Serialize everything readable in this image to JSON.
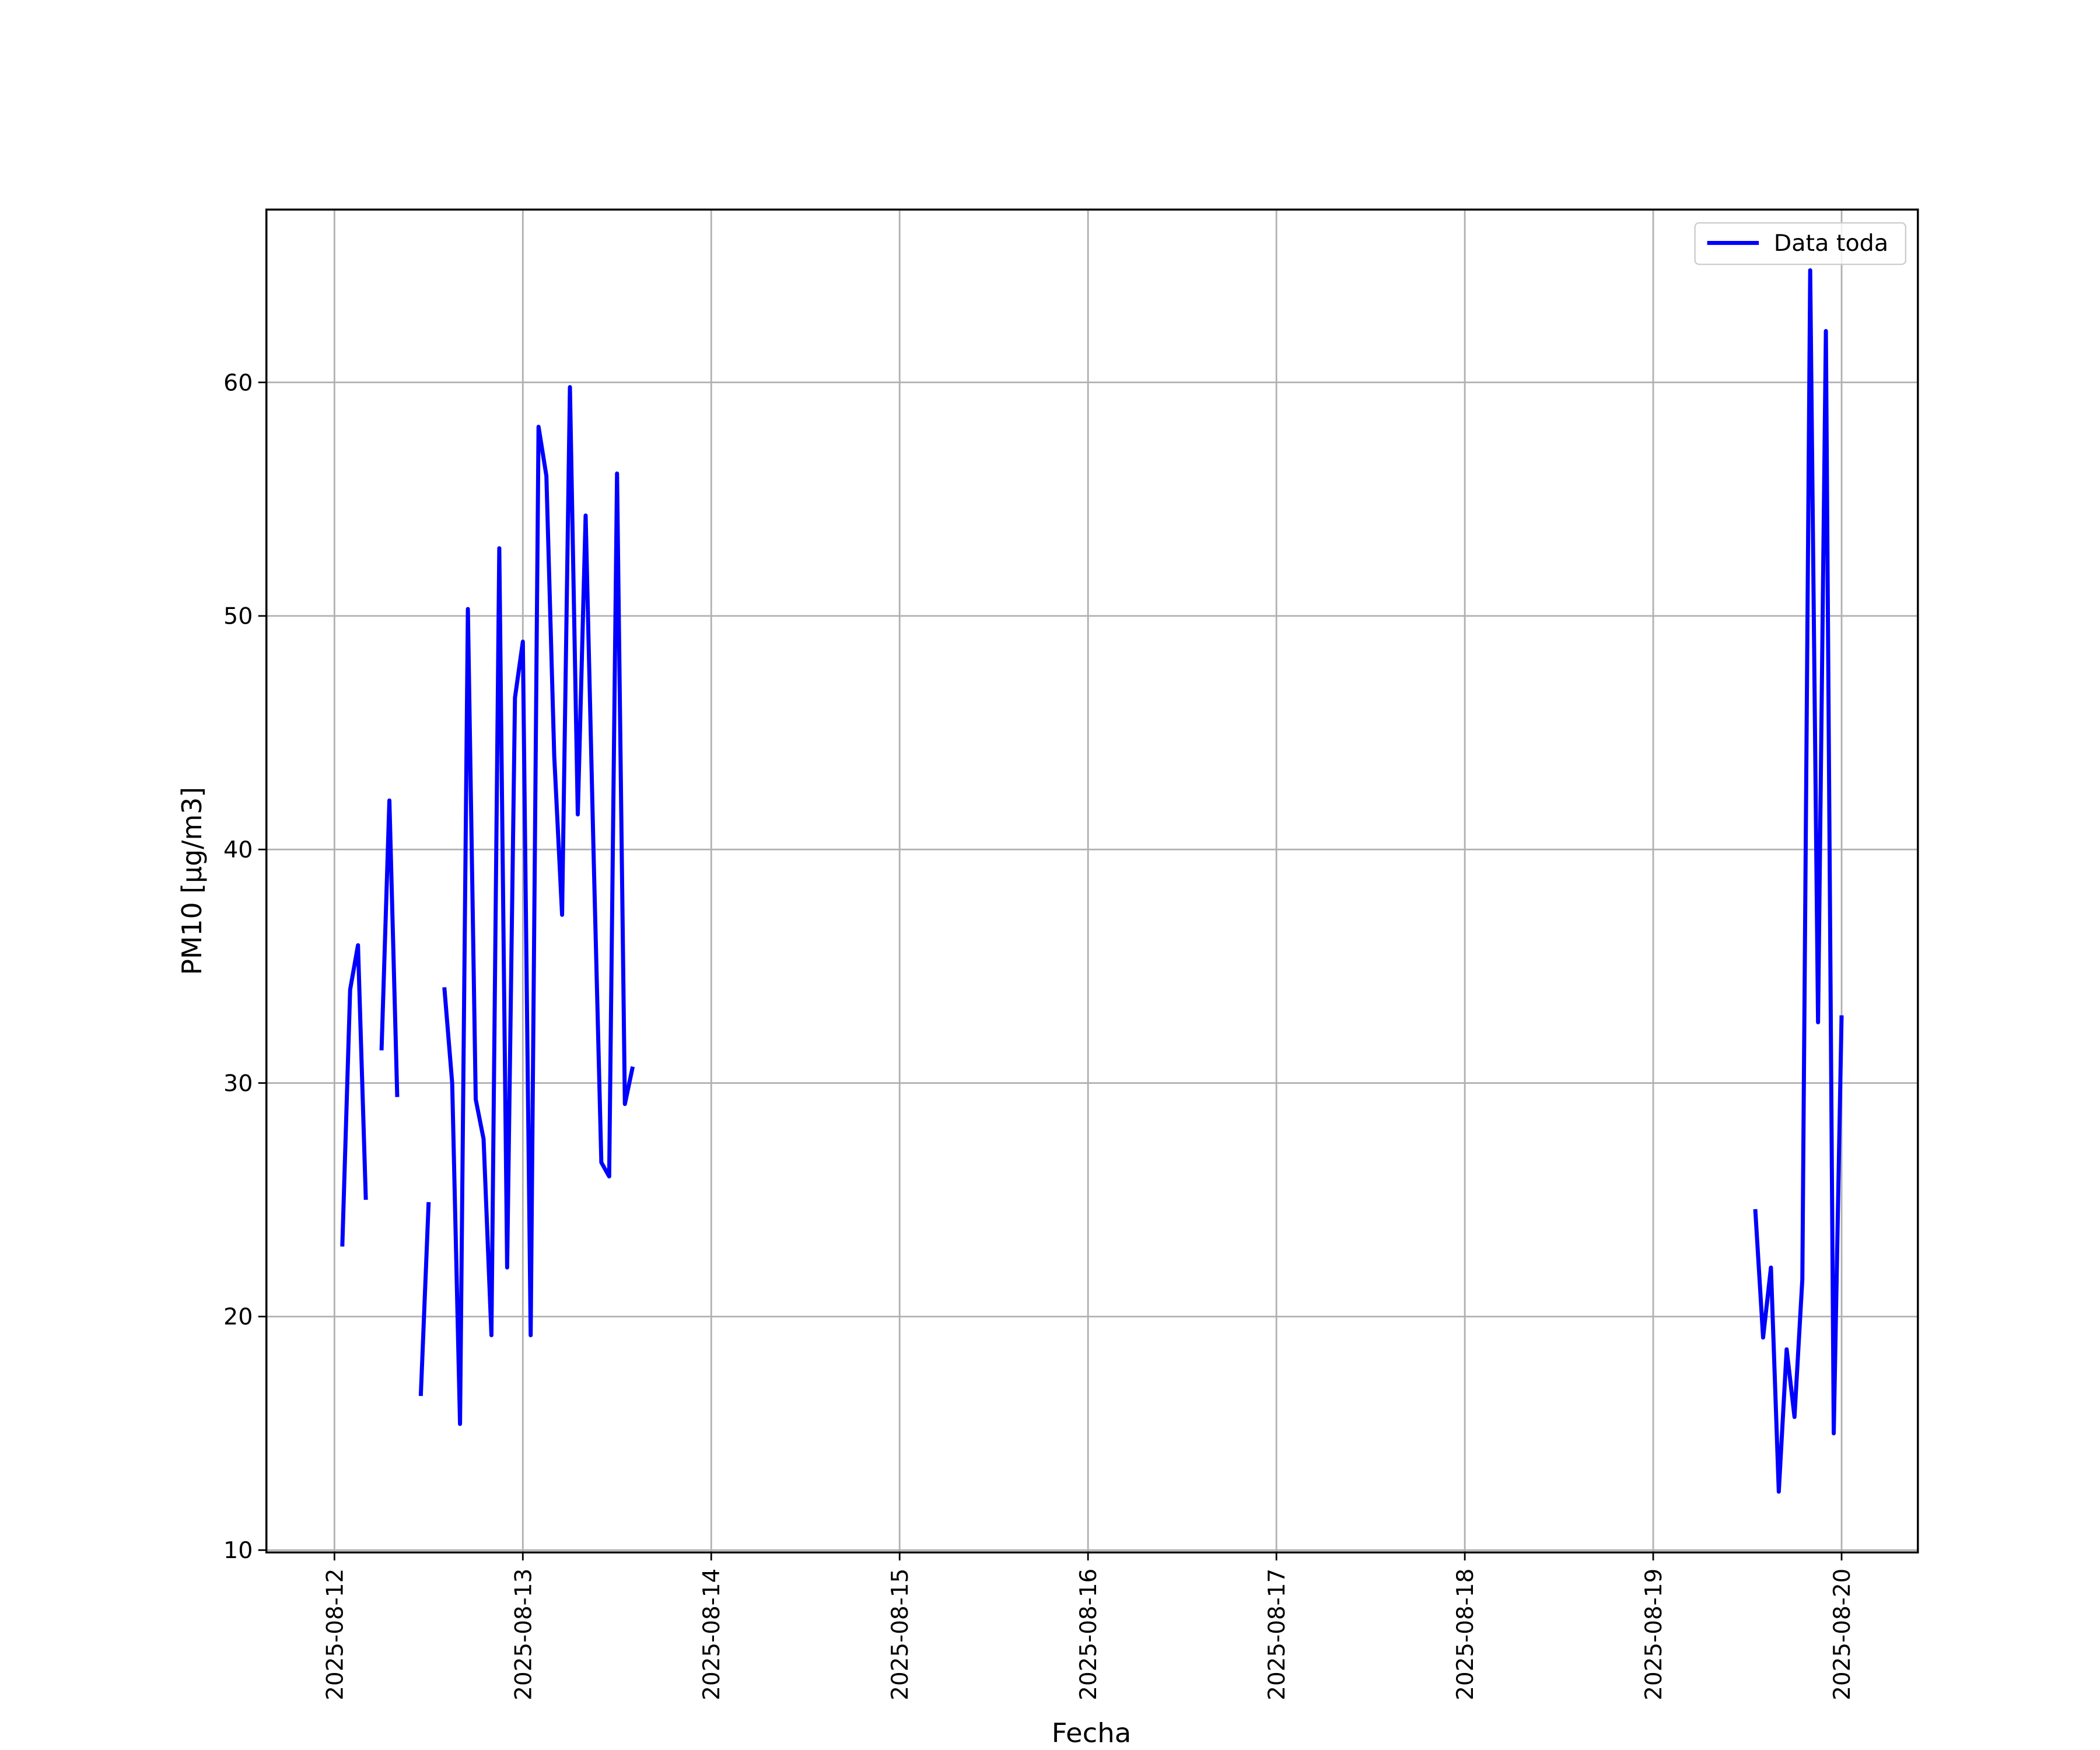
{
  "chart_data": {
    "type": "line",
    "xlabel": "Fecha",
    "ylabel": "PM10 [μg/m3]",
    "x": [
      "2025-08-12T01:00",
      "2025-08-12T02:00",
      "2025-08-12T03:00",
      "2025-08-12T04:00",
      "2025-08-12T05:00",
      "2025-08-12T06:00",
      "2025-08-12T07:00",
      "2025-08-12T08:00",
      "2025-08-12T09:00",
      "2025-08-12T11:00",
      "2025-08-12T12:00",
      "2025-08-12T13:00",
      "2025-08-12T14:00",
      "2025-08-12T15:00",
      "2025-08-12T16:00",
      "2025-08-12T17:00",
      "2025-08-12T18:00",
      "2025-08-12T19:00",
      "2025-08-12T20:00",
      "2025-08-12T21:00",
      "2025-08-12T22:00",
      "2025-08-12T23:00",
      "2025-08-13T00:00",
      "2025-08-13T01:00",
      "2025-08-13T02:00",
      "2025-08-13T03:00",
      "2025-08-13T04:00",
      "2025-08-13T05:00",
      "2025-08-13T06:00",
      "2025-08-13T07:00",
      "2025-08-13T08:00",
      "2025-08-13T09:00",
      "2025-08-13T10:00",
      "2025-08-13T11:00",
      "2025-08-13T12:00",
      "2025-08-13T13:00",
      "2025-08-13T14:00",
      "2025-08-13T15:00",
      "2025-08-19T13:00",
      "2025-08-19T14:00",
      "2025-08-19T15:00",
      "2025-08-19T16:00",
      "2025-08-19T17:00",
      "2025-08-19T18:00",
      "2025-08-19T19:00",
      "2025-08-19T20:00",
      "2025-08-19T21:00",
      "2025-08-19T22:00",
      "2025-08-19T23:00",
      "2025-08-20T00:00"
    ],
    "series": [
      {
        "name": "Data toda",
        "color": "#0000ff",
        "values": [
          23.0,
          34.0,
          35.9,
          25.0,
          null,
          31.4,
          42.1,
          29.4,
          null,
          16.6,
          24.9,
          null,
          34.1,
          30.0,
          15.4,
          50.3,
          29.3,
          27.6,
          19.2,
          52.9,
          22.1,
          46.5,
          48.9,
          19.2,
          58.1,
          56.0,
          44.0,
          37.2,
          59.8,
          41.5,
          54.3,
          40.0,
          26.6,
          26.0,
          56.1,
          29.1,
          30.7,
          null,
          24.6,
          19.1,
          22.1,
          12.5,
          18.6,
          15.7,
          21.6,
          64.8,
          32.6,
          62.2,
          15.0,
          32.9
        ]
      }
    ],
    "xlim": [
      "2025-08-11T15:20",
      "2025-08-20T09:43"
    ],
    "xticks": [
      "2025-08-12",
      "2025-08-13",
      "2025-08-14",
      "2025-08-15",
      "2025-08-16",
      "2025-08-17",
      "2025-08-18",
      "2025-08-19",
      "2025-08-20"
    ],
    "ylim": [
      9.9,
      67.4
    ],
    "yticks": [
      10,
      20,
      30,
      40,
      50,
      60
    ],
    "grid": true,
    "legend": "upper right"
  }
}
